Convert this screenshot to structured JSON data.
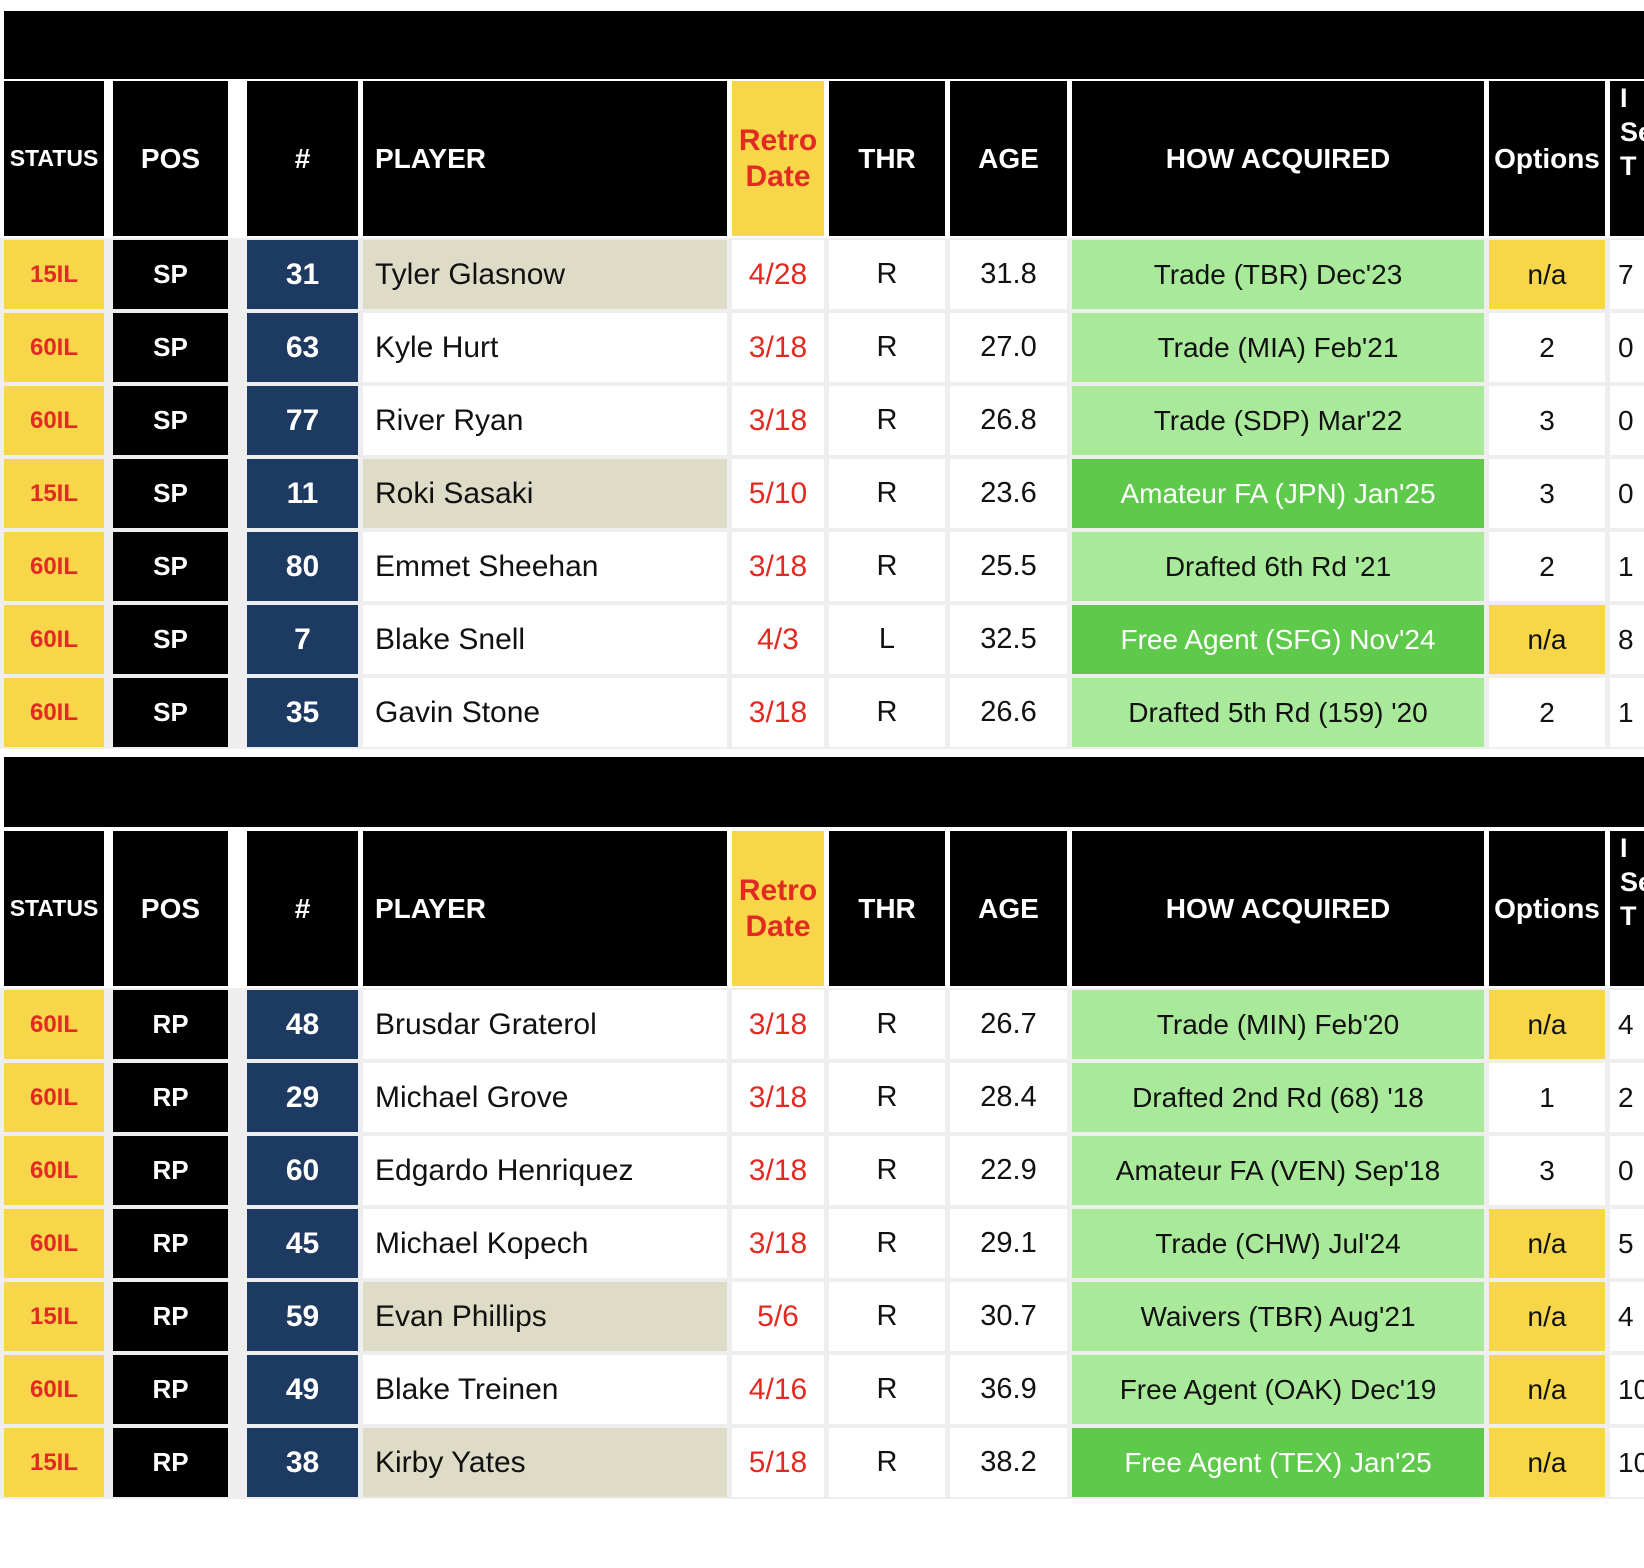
{
  "headers": {
    "status": "STATUS",
    "pos": "POS",
    "num": "#",
    "player": "PLAYER",
    "retro_line1": "Retro",
    "retro_line2": "Date",
    "thr": "THR",
    "age": "AGE",
    "how": "HOW ACQUIRED",
    "options": "Options",
    "cut_line1": "I",
    "cut_line2": "Se",
    "cut_line3": "T"
  },
  "colors": {
    "yellow": "#f7d64a",
    "red": "#e32a22",
    "navy": "#1d3a63",
    "light_green": "#a9ea9a",
    "dark_green": "#5ec94a",
    "beige": "#dedcc7"
  },
  "starters": [
    {
      "status": "15IL",
      "pos": "SP",
      "num": "31",
      "player": "Tyler Glasnow",
      "highlight": true,
      "retro": "4/28",
      "thr": "R",
      "age": "31.8",
      "how": "Trade (TBR) Dec'23",
      "how_recent": false,
      "options": "n/a",
      "extra": "7"
    },
    {
      "status": "60IL",
      "pos": "SP",
      "num": "63",
      "player": "Kyle Hurt",
      "highlight": false,
      "retro": "3/18",
      "thr": "R",
      "age": "27.0",
      "how": "Trade (MIA) Feb'21",
      "how_recent": false,
      "options": "2",
      "extra": "0"
    },
    {
      "status": "60IL",
      "pos": "SP",
      "num": "77",
      "player": "River Ryan",
      "highlight": false,
      "retro": "3/18",
      "thr": "R",
      "age": "26.8",
      "how": "Trade (SDP) Mar'22",
      "how_recent": false,
      "options": "3",
      "extra": "0"
    },
    {
      "status": "15IL",
      "pos": "SP",
      "num": "11",
      "player": "Roki Sasaki",
      "highlight": true,
      "retro": "5/10",
      "thr": "R",
      "age": "23.6",
      "how": "Amateur FA (JPN) Jan'25",
      "how_recent": true,
      "options": "3",
      "extra": "0"
    },
    {
      "status": "60IL",
      "pos": "SP",
      "num": "80",
      "player": "Emmet Sheehan",
      "highlight": false,
      "retro": "3/18",
      "thr": "R",
      "age": "25.5",
      "how": "Drafted 6th Rd '21",
      "how_recent": false,
      "options": "2",
      "extra": "1"
    },
    {
      "status": "60IL",
      "pos": "SP",
      "num": "7",
      "player": "Blake Snell",
      "highlight": false,
      "retro": "4/3",
      "thr": "L",
      "age": "32.5",
      "how": "Free Agent (SFG) Nov'24",
      "how_recent": true,
      "options": "n/a",
      "extra": "8"
    },
    {
      "status": "60IL",
      "pos": "SP",
      "num": "35",
      "player": "Gavin Stone",
      "highlight": false,
      "retro": "3/18",
      "thr": "R",
      "age": "26.6",
      "how": "Drafted 5th Rd (159) '20",
      "how_recent": false,
      "options": "2",
      "extra": "1"
    }
  ],
  "relievers": [
    {
      "status": "60IL",
      "pos": "RP",
      "num": "48",
      "player": "Brusdar Graterol",
      "highlight": false,
      "retro": "3/18",
      "thr": "R",
      "age": "26.7",
      "how": "Trade (MIN) Feb'20",
      "how_recent": false,
      "options": "n/a",
      "extra": "4"
    },
    {
      "status": "60IL",
      "pos": "RP",
      "num": "29",
      "player": "Michael Grove",
      "highlight": false,
      "retro": "3/18",
      "thr": "R",
      "age": "28.4",
      "how": "Drafted 2nd Rd (68) '18",
      "how_recent": false,
      "options": "1",
      "extra": "2"
    },
    {
      "status": "60IL",
      "pos": "RP",
      "num": "60",
      "player": "Edgardo Henriquez",
      "highlight": false,
      "retro": "3/18",
      "thr": "R",
      "age": "22.9",
      "how": "Amateur FA (VEN) Sep'18",
      "how_recent": false,
      "options": "3",
      "extra": "0"
    },
    {
      "status": "60IL",
      "pos": "RP",
      "num": "45",
      "player": "Michael Kopech",
      "highlight": false,
      "retro": "3/18",
      "thr": "R",
      "age": "29.1",
      "how": "Trade (CHW) Jul'24",
      "how_recent": false,
      "options": "n/a",
      "extra": "5"
    },
    {
      "status": "15IL",
      "pos": "RP",
      "num": "59",
      "player": "Evan Phillips",
      "highlight": true,
      "retro": "5/6",
      "thr": "R",
      "age": "30.7",
      "how": "Waivers (TBR) Aug'21",
      "how_recent": false,
      "options": "n/a",
      "extra": "4"
    },
    {
      "status": "60IL",
      "pos": "RP",
      "num": "49",
      "player": "Blake Treinen",
      "highlight": false,
      "retro": "4/16",
      "thr": "R",
      "age": "36.9",
      "how": "Free Agent (OAK) Dec'19",
      "how_recent": false,
      "options": "n/a",
      "extra": "10"
    },
    {
      "status": "15IL",
      "pos": "RP",
      "num": "38",
      "player": "Kirby Yates",
      "highlight": true,
      "retro": "5/18",
      "thr": "R",
      "age": "38.2",
      "how": "Free Agent (TEX) Jan'25",
      "how_recent": true,
      "options": "n/a",
      "extra": "10"
    }
  ]
}
